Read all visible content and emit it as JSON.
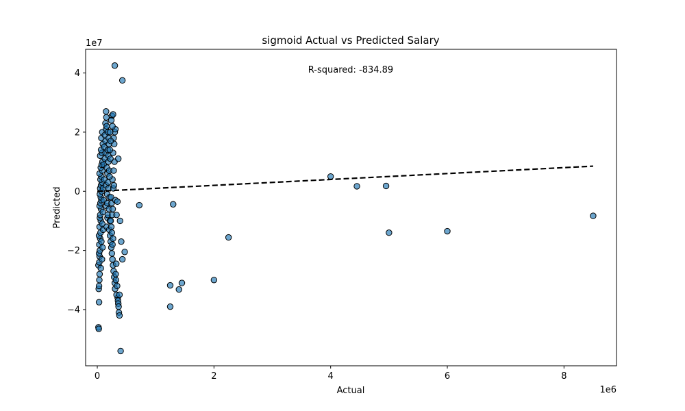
{
  "chart_data": {
    "type": "scatter",
    "title": "sigmoid Actual vs Predicted Salary",
    "xlabel": "Actual",
    "ylabel": "Predicted",
    "x_offset_text": "1e6",
    "y_offset_text": "1e7",
    "x_scale": 1000000,
    "y_scale": 10000000,
    "xlim": [
      -200000,
      8900000
    ],
    "ylim": [
      -59000000,
      48000000
    ],
    "x_ticks": [
      0,
      2000000,
      4000000,
      6000000,
      8000000
    ],
    "x_tick_labels": [
      "0",
      "2",
      "4",
      "6",
      "8"
    ],
    "y_ticks": [
      -40000000,
      -20000000,
      0,
      20000000,
      40000000
    ],
    "y_tick_labels": [
      "−4",
      "−2",
      "0",
      "2",
      "4"
    ],
    "annotation": "R-squared: -834.89",
    "grid": false,
    "colors": {
      "point_fill": "#1f77b4",
      "point_edge": "#000000",
      "reference_line": "#000000"
    },
    "reference_line": {
      "x": [
        0,
        8500000
      ],
      "y": [
        0,
        8500000
      ]
    },
    "points": [
      [
        20000,
        -46000000
      ],
      [
        25000,
        -46500000
      ],
      [
        30000,
        -37500000
      ],
      [
        25000,
        -33000000
      ],
      [
        30000,
        -32000000
      ],
      [
        35000,
        -30000000
      ],
      [
        40000,
        -28000000
      ],
      [
        20000,
        -25000000
      ],
      [
        35000,
        -24000000
      ],
      [
        40000,
        -22000000
      ],
      [
        30000,
        -21000000
      ],
      [
        45000,
        -20000000
      ],
      [
        35000,
        -18000000
      ],
      [
        50000,
        -16000000
      ],
      [
        30000,
        -15000000
      ],
      [
        55000,
        -14000000
      ],
      [
        40000,
        -12000000
      ],
      [
        60000,
        -10000000
      ],
      [
        45000,
        -9000000
      ],
      [
        50000,
        -8000000
      ],
      [
        65000,
        -6000000
      ],
      [
        40000,
        -5000000
      ],
      [
        55000,
        -4000000
      ],
      [
        70000,
        -3000000
      ],
      [
        60000,
        -2000000
      ],
      [
        45000,
        -1000000
      ],
      [
        75000,
        0
      ],
      [
        50000,
        1000000
      ],
      [
        65000,
        2000000
      ],
      [
        80000,
        3000000
      ],
      [
        55000,
        4000000
      ],
      [
        70000,
        5000000
      ],
      [
        40000,
        6000000
      ],
      [
        85000,
        7000000
      ],
      [
        60000,
        8000000
      ],
      [
        75000,
        9000000
      ],
      [
        90000,
        10000000
      ],
      [
        50000,
        12000000
      ],
      [
        80000,
        13000000
      ],
      [
        65000,
        14000000
      ],
      [
        95000,
        16000000
      ],
      [
        70000,
        18000000
      ],
      [
        85000,
        20000000
      ],
      [
        60000,
        -26000000
      ],
      [
        80000,
        -23000000
      ],
      [
        90000,
        -19000000
      ],
      [
        70000,
        -17000000
      ],
      [
        100000,
        -13000000
      ],
      [
        85000,
        -11000000
      ],
      [
        95000,
        -7000000
      ],
      [
        110000,
        -3000000
      ],
      [
        100000,
        1000000
      ],
      [
        120000,
        4000000
      ],
      [
        110000,
        9000000
      ],
      [
        130000,
        11000000
      ],
      [
        120000,
        15000000
      ],
      [
        140000,
        17000000
      ],
      [
        130000,
        19000000
      ],
      [
        150000,
        21000000
      ],
      [
        140000,
        23000000
      ],
      [
        155000,
        25000000
      ],
      [
        150000,
        27000000
      ],
      [
        160000,
        22000000
      ],
      [
        145000,
        13000000
      ],
      [
        165000,
        8000000
      ],
      [
        150000,
        2000000
      ],
      [
        170000,
        -1000000
      ],
      [
        155000,
        -5000000
      ],
      [
        175000,
        -9000000
      ],
      [
        160000,
        -12000000
      ],
      [
        180000,
        -8000000
      ],
      [
        170000,
        -4000000
      ],
      [
        185000,
        3000000
      ],
      [
        175000,
        6000000
      ],
      [
        190000,
        10000000
      ],
      [
        180000,
        14000000
      ],
      [
        195000,
        18000000
      ],
      [
        185000,
        20000000
      ],
      [
        200000,
        16000000
      ],
      [
        190000,
        12000000
      ],
      [
        205000,
        7000000
      ],
      [
        195000,
        1000000
      ],
      [
        210000,
        -2000000
      ],
      [
        200000,
        -6000000
      ],
      [
        215000,
        -10000000
      ],
      [
        205000,
        -13000000
      ],
      [
        220000,
        -15000000
      ],
      [
        230000,
        -17000000
      ],
      [
        240000,
        -19000000
      ],
      [
        250000,
        -21000000
      ],
      [
        260000,
        -23000000
      ],
      [
        270000,
        -25000000
      ],
      [
        280000,
        -27000000
      ],
      [
        290000,
        -29000000
      ],
      [
        300000,
        -31000000
      ],
      [
        305000,
        -33000000
      ],
      [
        260000,
        -18000000
      ],
      [
        270000,
        -16000000
      ],
      [
        250000,
        -14000000
      ],
      [
        240000,
        -12000000
      ],
      [
        230000,
        -10000000
      ],
      [
        255000,
        -8000000
      ],
      [
        265000,
        -6000000
      ],
      [
        245000,
        -4000000
      ],
      [
        235000,
        -2000000
      ],
      [
        275000,
        1000000
      ],
      [
        285000,
        2000000
      ],
      [
        260000,
        4000000
      ],
      [
        280000,
        7000000
      ],
      [
        295000,
        10000000
      ],
      [
        270000,
        13000000
      ],
      [
        290000,
        16000000
      ],
      [
        280000,
        18000000
      ],
      [
        300000,
        20000000
      ],
      [
        310000,
        21000000
      ],
      [
        260000,
        22000000
      ],
      [
        250000,
        25500000
      ],
      [
        270000,
        26000000
      ],
      [
        240000,
        24000000
      ],
      [
        220000,
        20000000
      ],
      [
        230000,
        17000000
      ],
      [
        215000,
        14000000
      ],
      [
        225000,
        11000000
      ],
      [
        210000,
        5000000
      ],
      [
        350000,
        -36000000
      ],
      [
        355000,
        -37000000
      ],
      [
        360000,
        -38000000
      ],
      [
        365000,
        -39000000
      ],
      [
        370000,
        -41000000
      ],
      [
        380000,
        -42000000
      ],
      [
        330000,
        -35000000
      ],
      [
        340000,
        -32000000
      ],
      [
        320000,
        -30000000
      ],
      [
        315000,
        -28000000
      ],
      [
        325000,
        -24500000
      ],
      [
        310000,
        -3000000
      ],
      [
        380000,
        -35000000
      ],
      [
        300000,
        42500000
      ],
      [
        430000,
        37500000
      ],
      [
        360000,
        11000000
      ],
      [
        330000,
        -8000000
      ],
      [
        345000,
        -3500000
      ],
      [
        390000,
        -10000000
      ],
      [
        410000,
        -17000000
      ],
      [
        470000,
        -20500000
      ],
      [
        430000,
        -23000000
      ],
      [
        400000,
        -54000000
      ],
      [
        720000,
        -4700000
      ],
      [
        1300000,
        -4400000
      ],
      [
        2250000,
        -15600000
      ],
      [
        1250000,
        -31800000
      ],
      [
        1400000,
        -33200000
      ],
      [
        1450000,
        -31000000
      ],
      [
        1250000,
        -39000000
      ],
      [
        2000000,
        -30000000
      ],
      [
        4000000,
        5000000
      ],
      [
        4450000,
        1700000
      ],
      [
        4950000,
        1800000
      ],
      [
        5000000,
        -14000000
      ],
      [
        6000000,
        -13500000
      ],
      [
        8500000,
        -8300000
      ]
    ]
  }
}
